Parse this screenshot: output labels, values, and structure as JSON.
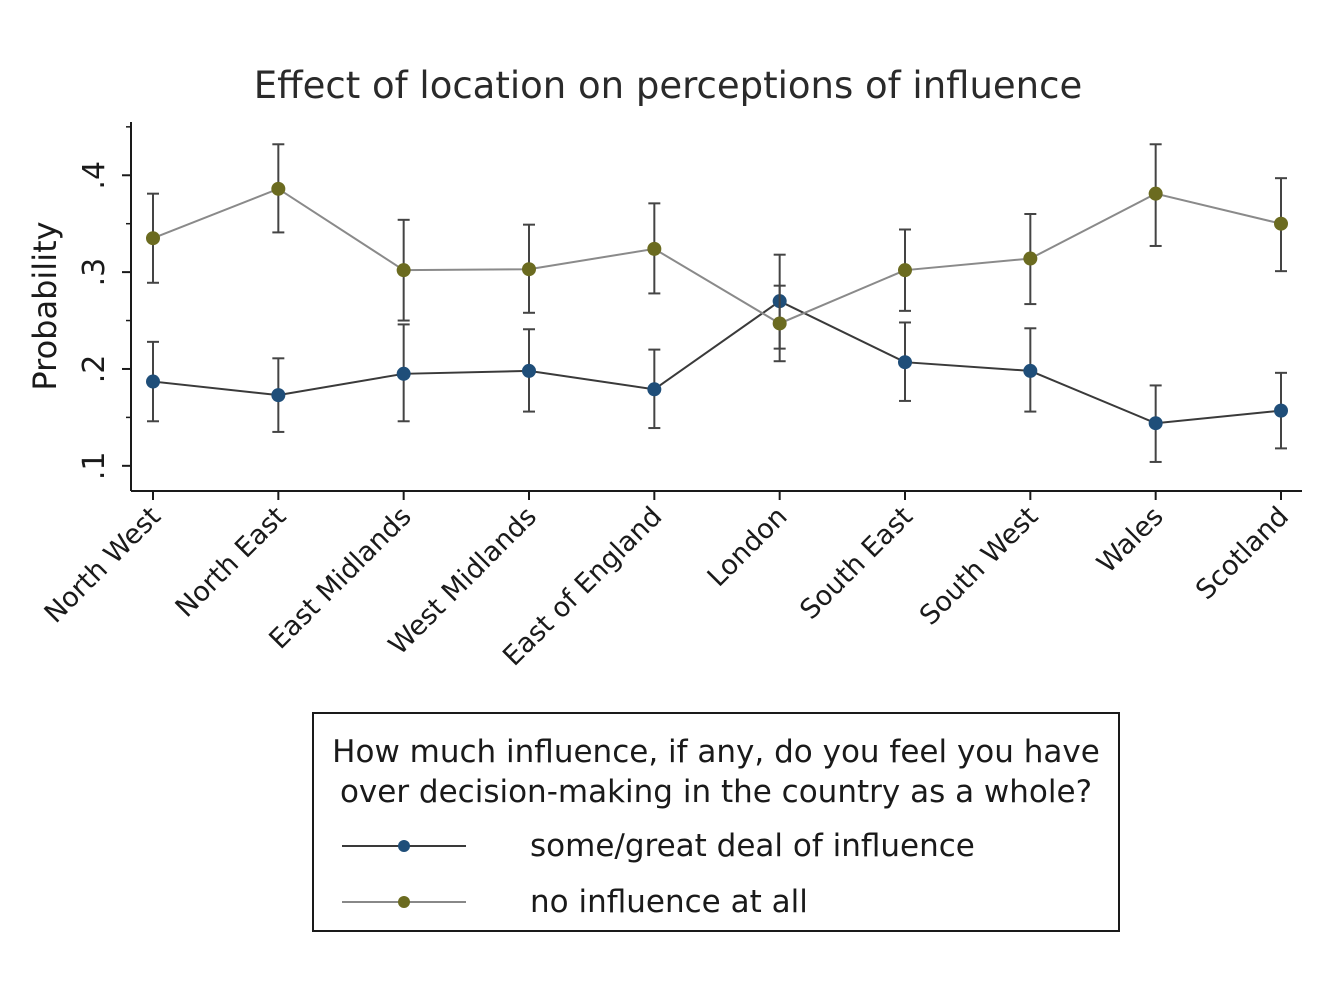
{
  "chart_data": {
    "type": "line",
    "title": "Effect of location on perceptions of influence",
    "xlabel": "",
    "ylabel": "Probability",
    "categories": [
      "North West",
      "North East",
      "East Midlands",
      "West Midlands",
      "East of England",
      "London",
      "South East",
      "South West",
      "Wales",
      "Scotland"
    ],
    "yticks": [
      {
        "value": 0.1,
        "label": ".1"
      },
      {
        "value": 0.2,
        "label": ".2"
      },
      {
        "value": 0.3,
        "label": ".3"
      },
      {
        "value": 0.4,
        "label": ".4"
      }
    ],
    "ylim": [
      0.074,
      0.455
    ],
    "grid": false,
    "legend_position": "bottom",
    "series": [
      {
        "name": "some/great deal of influence",
        "color": "#1f4e79",
        "values": [
          0.187,
          0.173,
          0.195,
          0.198,
          0.179,
          0.27,
          0.207,
          0.198,
          0.144,
          0.157
        ],
        "lower": [
          0.146,
          0.135,
          0.146,
          0.156,
          0.139,
          0.221,
          0.167,
          0.156,
          0.104,
          0.118
        ],
        "upper": [
          0.228,
          0.211,
          0.246,
          0.241,
          0.22,
          0.318,
          0.248,
          0.242,
          0.183,
          0.196
        ]
      },
      {
        "name": "no influence at all",
        "color": "#6b6b20",
        "values": [
          0.335,
          0.386,
          0.302,
          0.303,
          0.324,
          0.247,
          0.302,
          0.314,
          0.381,
          0.35
        ],
        "lower": [
          0.289,
          0.341,
          0.25,
          0.258,
          0.278,
          0.208,
          0.26,
          0.267,
          0.327,
          0.301
        ],
        "upper": [
          0.381,
          0.432,
          0.354,
          0.349,
          0.371,
          0.286,
          0.344,
          0.36,
          0.432,
          0.397
        ]
      }
    ]
  },
  "legend": {
    "title": "How much influence, if any, do you feel you have\nover decision-making in the country as a whole?",
    "items": [
      {
        "label": "some/great deal of influence",
        "color": "#1f4e79"
      },
      {
        "label": "no influence at all",
        "color": "#6b6b20"
      }
    ]
  }
}
